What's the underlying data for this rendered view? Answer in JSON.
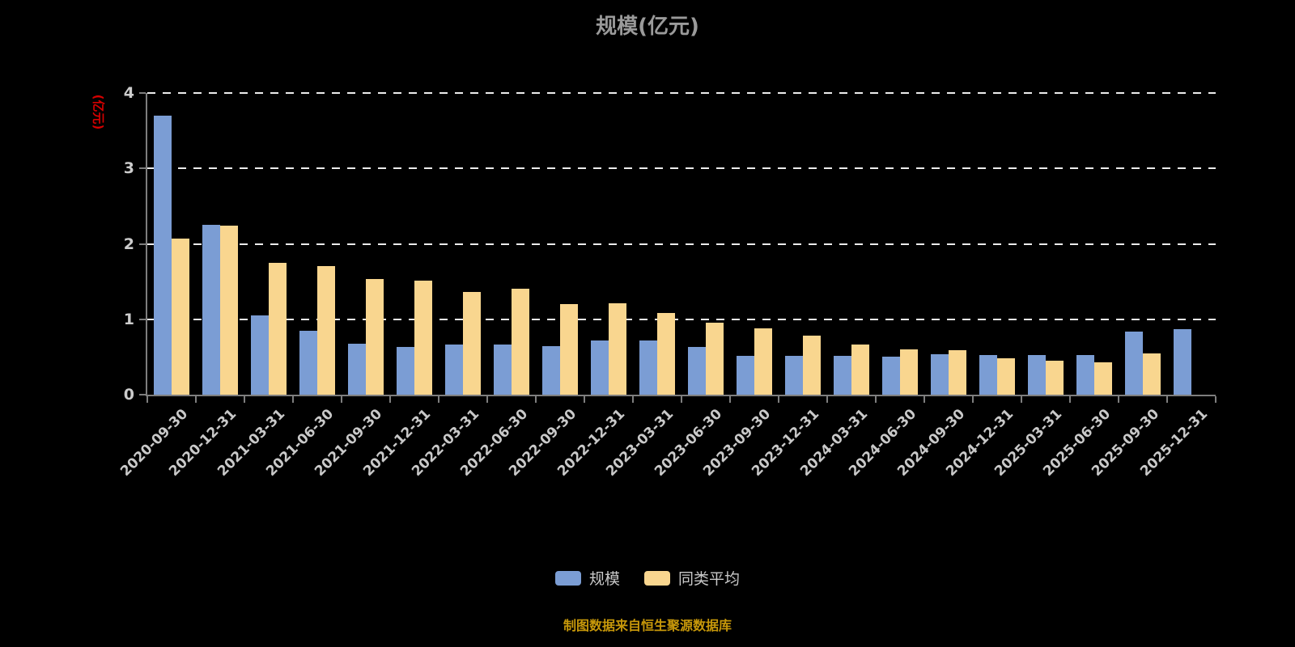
{
  "title": "规模(亿元)",
  "y_axis_name": "(亿元)",
  "source_note": "制图数据来自恒生聚源数据库",
  "legend": [
    {
      "label": "规模",
      "color": "#7b9dd4"
    },
    {
      "label": "同类平均",
      "color": "#f9d68f"
    }
  ],
  "chart_data": {
    "type": "bar",
    "title": "规模(亿元)",
    "ylabel": "(亿元)",
    "ylim": [
      0,
      4
    ],
    "yticks": [
      0,
      1,
      2,
      3,
      4
    ],
    "grid": true,
    "legend_position": "bottom",
    "categories": [
      "2020-09-30",
      "2020-12-31",
      "2021-03-31",
      "2021-06-30",
      "2021-09-30",
      "2021-12-31",
      "2022-03-31",
      "2022-06-30",
      "2022-09-30",
      "2022-12-31",
      "2023-03-31",
      "2023-06-30",
      "2023-09-30",
      "2023-12-31",
      "2024-03-31",
      "2024-06-30",
      "2024-09-30",
      "2024-12-31",
      "2025-03-31",
      "2025-06-30",
      "2025-09-30",
      "2025-12-31"
    ],
    "series": [
      {
        "name": "规模",
        "color": "#7b9dd4",
        "values": [
          3.7,
          2.25,
          1.05,
          0.85,
          0.68,
          0.63,
          0.66,
          0.66,
          0.64,
          0.72,
          0.72,
          0.63,
          0.52,
          0.52,
          0.51,
          0.5,
          0.54,
          0.53,
          0.53,
          0.53,
          0.84,
          0.87
        ]
      },
      {
        "name": "同类平均",
        "color": "#f9d68f",
        "values": [
          2.07,
          2.24,
          1.75,
          1.7,
          1.53,
          1.51,
          1.36,
          1.41,
          1.2,
          1.21,
          1.08,
          0.95,
          0.88,
          0.78,
          0.67,
          0.6,
          0.59,
          0.48,
          0.45,
          0.43,
          0.55,
          0
        ]
      }
    ]
  }
}
